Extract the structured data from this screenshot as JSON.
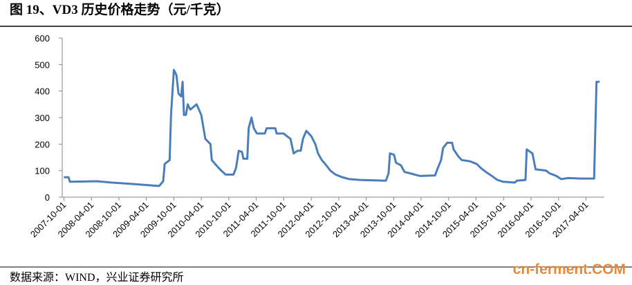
{
  "chart_data": {
    "type": "line",
    "title": "图 19、VD3 历史价格走势（元/千克）",
    "source": "数据来源：WIND，兴业证券研究所",
    "watermark": "cn-ferment.COM",
    "series": [
      {
        "name": "VD3",
        "color": "#4a7ebb",
        "x": [
          "2007-10-01",
          "2007-11-01",
          "2007-11-10",
          "2008-05-07",
          "2008-08-10",
          "2008-12-25",
          "2009-06-25",
          "2009-07-22",
          "2009-08-01",
          "2009-09-03",
          "2009-09-12",
          "2009-10-01",
          "2009-10-18",
          "2009-11-01",
          "2009-11-18",
          "2009-11-28",
          "2009-12-07",
          "2009-12-20",
          "2010-01-01",
          "2010-01-18",
          "2010-03-01",
          "2010-04-01",
          "2010-04-28",
          "2010-06-01",
          "2010-06-10",
          "2010-07-10",
          "2010-08-12",
          "2010-09-10",
          "2010-11-01",
          "2010-11-18",
          "2010-12-06",
          "2010-12-28",
          "2011-01-06",
          "2011-02-01",
          "2011-02-10",
          "2011-03-01",
          "2011-03-16",
          "2011-04-06",
          "2011-05-28",
          "2011-06-10",
          "2011-08-06",
          "2011-08-15",
          "2011-10-01",
          "2011-10-22",
          "2011-11-15",
          "2011-12-06",
          "2012-01-01",
          "2012-01-22",
          "2012-02-06",
          "2012-02-28",
          "2012-04-01",
          "2012-04-28",
          "2012-05-16",
          "2012-06-10",
          "2012-07-10",
          "2012-08-06",
          "2012-09-10",
          "2012-10-25",
          "2012-12-10",
          "2013-02-18",
          "2013-08-10",
          "2013-08-28",
          "2013-09-06",
          "2013-10-03",
          "2013-10-16",
          "2013-11-18",
          "2013-12-12",
          "2014-01-18",
          "2014-02-18",
          "2014-03-25",
          "2014-07-03",
          "2014-07-18",
          "2014-08-12",
          "2014-08-25",
          "2014-09-21",
          "2014-10-24",
          "2014-11-03",
          "2014-12-03",
          "2014-12-27",
          "2015-02-21",
          "2015-04-06",
          "2015-05-03",
          "2015-06-06",
          "2015-07-15",
          "2015-08-21",
          "2015-09-28",
          "2015-12-15",
          "2015-12-28",
          "2016-02-24",
          "2016-03-03",
          "2016-04-10",
          "2016-05-01",
          "2016-07-10",
          "2016-08-01",
          "2016-09-16",
          "2016-10-18",
          "2016-12-03",
          "2017-02-25",
          "2017-05-25",
          "2017-06-10",
          "2017-07-01"
        ],
        "values": [
          75,
          75,
          58,
          60,
          55,
          50,
          42,
          60,
          125,
          140,
          310,
          480,
          460,
          390,
          380,
          435,
          310,
          310,
          350,
          330,
          350,
          310,
          220,
          200,
          140,
          120,
          100,
          85,
          85,
          110,
          175,
          170,
          145,
          145,
          260,
          300,
          260,
          240,
          240,
          260,
          260,
          240,
          240,
          230,
          220,
          165,
          175,
          175,
          220,
          250,
          230,
          200,
          165,
          140,
          120,
          100,
          85,
          75,
          68,
          65,
          62,
          90,
          165,
          160,
          130,
          120,
          95,
          90,
          85,
          80,
          82,
          105,
          140,
          185,
          205,
          205,
          180,
          155,
          140,
          135,
          125,
          110,
          95,
          80,
          65,
          58,
          55,
          62,
          65,
          180,
          165,
          105,
          100,
          90,
          80,
          68,
          72,
          70,
          70,
          435,
          435
        ]
      }
    ],
    "xlim": [
      "2007-09-20",
      "2017-08-01"
    ],
    "xticks": [
      "2007-10-01",
      "2008-04-01",
      "2008-10-01",
      "2009-04-01",
      "2009-10-01",
      "2010-04-01",
      "2010-10-01",
      "2011-04-01",
      "2011-10-01",
      "2012-04-01",
      "2012-10-01",
      "2013-04-01",
      "2013-10-01",
      "2014-04-01",
      "2014-10-01",
      "2015-04-01",
      "2015-10-01",
      "2016-04-01",
      "2016-10-01",
      "2017-04-01"
    ],
    "ylim": [
      0,
      600
    ],
    "yticks": [
      0,
      100,
      200,
      300,
      400,
      500,
      600
    ],
    "grid": false
  }
}
